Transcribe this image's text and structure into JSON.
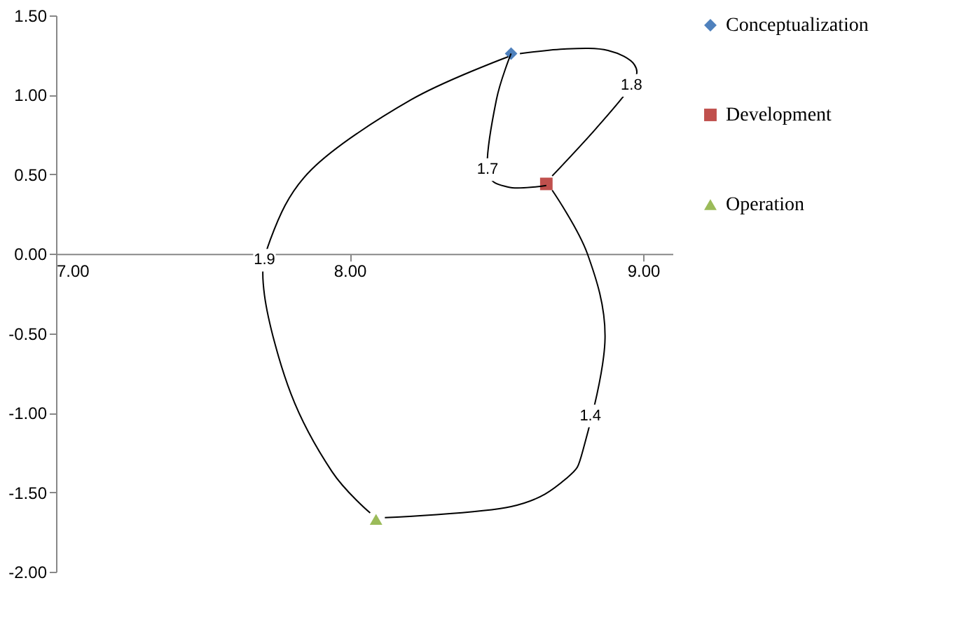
{
  "chart_data": {
    "type": "scatter",
    "xlim": [
      7.0,
      9.1
    ],
    "xticks": [
      {
        "value": 7,
        "label": "7.00"
      },
      {
        "value": 8,
        "label": "8.00"
      },
      {
        "value": 9,
        "label": "9.00"
      }
    ],
    "ylim": [
      -2.0,
      1.5
    ],
    "yticks": [
      {
        "value": -2,
        "label": "-2.00"
      },
      {
        "value": -1.5,
        "label": "-1.50"
      },
      {
        "value": -1,
        "label": "-1.00"
      },
      {
        "value": -0.5,
        "label": "-0.50"
      },
      {
        "value": 0,
        "label": "0.00"
      },
      {
        "value": 0.5,
        "label": "0.50"
      },
      {
        "value": 1,
        "label": "1.00"
      },
      {
        "value": 1.5,
        "label": "1.50"
      }
    ],
    "grid": false,
    "legend": "right",
    "series": [
      {
        "name": "Conceptualization",
        "color": "#4f81bd",
        "marker": "diamond",
        "x": [
          8.55
        ],
        "values": [
          1.26
        ]
      },
      {
        "name": "Development",
        "color": "#c0504d",
        "marker": "square",
        "x": [
          8.67
        ],
        "values": [
          0.44
        ]
      },
      {
        "name": "Operation",
        "color": "#9bbb59",
        "marker": "triangle",
        "x": [
          8.09
        ],
        "values": [
          -1.67
        ]
      },
      {
        "type": "line",
        "color": "#000000",
        "x": [
          8.55,
          8.5,
          8.47,
          8.54,
          8.67
        ],
        "values": [
          1.26,
          0.97,
          0.53,
          0.42,
          0.43
        ]
      },
      {
        "type": "line",
        "color": "#000000",
        "x": [
          8.69,
          8.84,
          8.96,
          8.97,
          8.88,
          8.74,
          8.58
        ],
        "values": [
          0.49,
          0.79,
          1.06,
          1.19,
          1.28,
          1.29,
          1.26
        ]
      },
      {
        "type": "line",
        "color": "#000000",
        "x": [
          8.54,
          8.21,
          7.87,
          7.73,
          7.71,
          7.8,
          7.94,
          8.07
        ],
        "values": [
          1.24,
          0.97,
          0.53,
          0.09,
          -0.26,
          -0.88,
          -1.37,
          -1.63
        ]
      },
      {
        "type": "line",
        "color": "#000000",
        "x": [
          8.69,
          8.81,
          8.87,
          8.8,
          8.74,
          8.55,
          8.12
        ],
        "values": [
          0.4,
          0.0,
          -0.53,
          -1.2,
          -1.41,
          -1.59,
          -1.66
        ]
      }
    ],
    "annotations": [
      {
        "text": "1.7",
        "x": 8.47,
        "y": 0.53
      },
      {
        "text": "1.8",
        "x": 8.96,
        "y": 1.06
      },
      {
        "text": "1.9",
        "x": 7.71,
        "y": -0.04
      },
      {
        "text": "1.4",
        "x": 8.82,
        "y": -1.02
      }
    ]
  }
}
